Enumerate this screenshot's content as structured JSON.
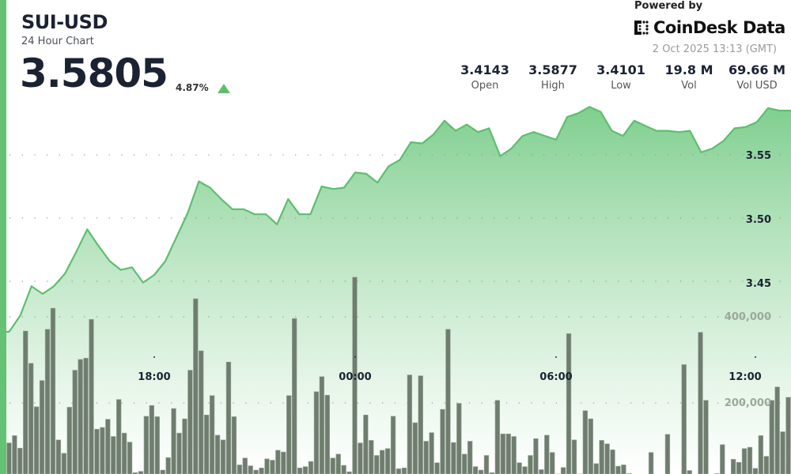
{
  "header": {
    "title": "SUI-USD",
    "subtitle": "24 Hour Chart",
    "price": "3.5805",
    "change": "4.87%",
    "change_direction": "up",
    "powered_by": "Powered by",
    "brand": "CoinDesk Data",
    "timestamp": "2 Oct 2025 13:13 (GMT)"
  },
  "stats": [
    {
      "value": "3.4143",
      "label": "Open"
    },
    {
      "value": "3.5877",
      "label": "High"
    },
    {
      "value": "3.4101",
      "label": "Low"
    },
    {
      "value": "19.8 M",
      "label": "Vol"
    },
    {
      "value": "69.66 M",
      "label": "Vol USD"
    }
  ],
  "colors": {
    "accent": "#5cbf6e",
    "volume_bar": "#6f7d6f",
    "text": "#1b2232"
  },
  "chart_data": {
    "type": "line",
    "grid": true,
    "price_axis": {
      "ticks": [
        "3.55",
        "3.50",
        "3.45"
      ],
      "position": "right"
    },
    "volume_axis": {
      "ticks": [
        "400,000",
        "200,000"
      ],
      "position": "right"
    },
    "time_axis": {
      "ticks": [
        "18:00",
        "00:00",
        "06:00",
        "12:00"
      ]
    },
    "price_series": {
      "x": [
        "13:40",
        "14:00",
        "14:20",
        "14:40",
        "15:00",
        "15:20",
        "15:40",
        "16:00",
        "16:20",
        "16:40",
        "17:00",
        "17:20",
        "17:40",
        "18:00",
        "18:20",
        "18:40",
        "19:00",
        "19:20",
        "19:40",
        "20:00",
        "20:20",
        "20:40",
        "21:00",
        "21:20",
        "21:40",
        "22:00",
        "22:20",
        "22:40",
        "23:00",
        "23:20",
        "23:40",
        "00:00",
        "00:20",
        "00:40",
        "01:00",
        "01:20",
        "01:40",
        "02:00",
        "02:20",
        "02:40",
        "03:00",
        "03:20",
        "03:40",
        "04:00",
        "04:20",
        "04:40",
        "05:00",
        "05:20",
        "05:40",
        "06:00",
        "06:20",
        "06:40",
        "07:00",
        "07:20",
        "07:40",
        "08:00",
        "08:20",
        "08:40",
        "09:00",
        "09:20",
        "09:40",
        "10:00",
        "10:20",
        "10:40",
        "11:00",
        "11:20",
        "11:40",
        "12:00",
        "12:20",
        "12:40",
        "13:00"
      ],
      "values": [
        3.41,
        3.423,
        3.446,
        3.44,
        3.446,
        3.456,
        3.473,
        3.491,
        3.478,
        3.466,
        3.459,
        3.461,
        3.449,
        3.455,
        3.466,
        3.485,
        3.504,
        3.529,
        3.524,
        3.515,
        3.507,
        3.507,
        3.503,
        3.503,
        3.495,
        3.515,
        3.503,
        3.503,
        3.525,
        3.523,
        3.524,
        3.536,
        3.535,
        3.528,
        3.541,
        3.546,
        3.56,
        3.559,
        3.566,
        3.577,
        3.569,
        3.574,
        3.568,
        3.571,
        3.549,
        3.555,
        3.565,
        3.568,
        3.565,
        3.562,
        3.58,
        3.583,
        3.588,
        3.584,
        3.569,
        3.565,
        3.577,
        3.573,
        3.569,
        3.569,
        3.568,
        3.569,
        3.552,
        3.555,
        3.561,
        3.571,
        3.572,
        3.576,
        3.587,
        3.585,
        3.585
      ]
    },
    "volume_series": {
      "type": "bar",
      "values": [
        107000,
        124000,
        95000,
        367000,
        292000,
        191000,
        252000,
        371000,
        420000,
        114000,
        83000,
        190000,
        276000,
        301000,
        304000,
        394000,
        139000,
        143000,
        162000,
        122000,
        208000,
        130000,
        109000,
        38000,
        41000,
        169000,
        194000,
        168000,
        44000,
        73000,
        187000,
        130000,
        163000,
        276000,
        442000,
        321000,
        172000,
        217000,
        125000,
        114000,
        295000,
        168000,
        56000,
        72000,
        54000,
        44000,
        49000,
        70000,
        67000,
        90000,
        86000,
        217000,
        396000,
        49000,
        52000,
        64000,
        226000,
        261000,
        218000,
        72000,
        81000,
        55000,
        40000,
        492000,
        107000,
        172000,
        113000,
        78000,
        90000,
        94000,
        169000,
        47000,
        49000,
        265000,
        154000,
        263000,
        111000,
        131000,
        61000,
        185000,
        371000,
        108000,
        199000,
        81000,
        111000,
        52000,
        44000,
        78000,
        38000,
        206000,
        128000,
        128000,
        122000,
        61000,
        52000,
        78000,
        117000,
        45000,
        125000,
        85000,
        35000,
        50000,
        361000,
        114000,
        35000,
        182000,
        163000,
        59000,
        113000,
        105000,
        91000,
        53000,
        56000,
        36000,
        29000,
        29000,
        29000,
        85000,
        29000,
        29000,
        127000,
        29000,
        29000,
        289000,
        43000,
        29000,
        364000,
        206000,
        29000,
        36000,
        103000,
        29000,
        69000,
        62000,
        94000,
        97000,
        48000,
        124000,
        76000,
        206000,
        237000,
        133000,
        213000
      ]
    }
  }
}
